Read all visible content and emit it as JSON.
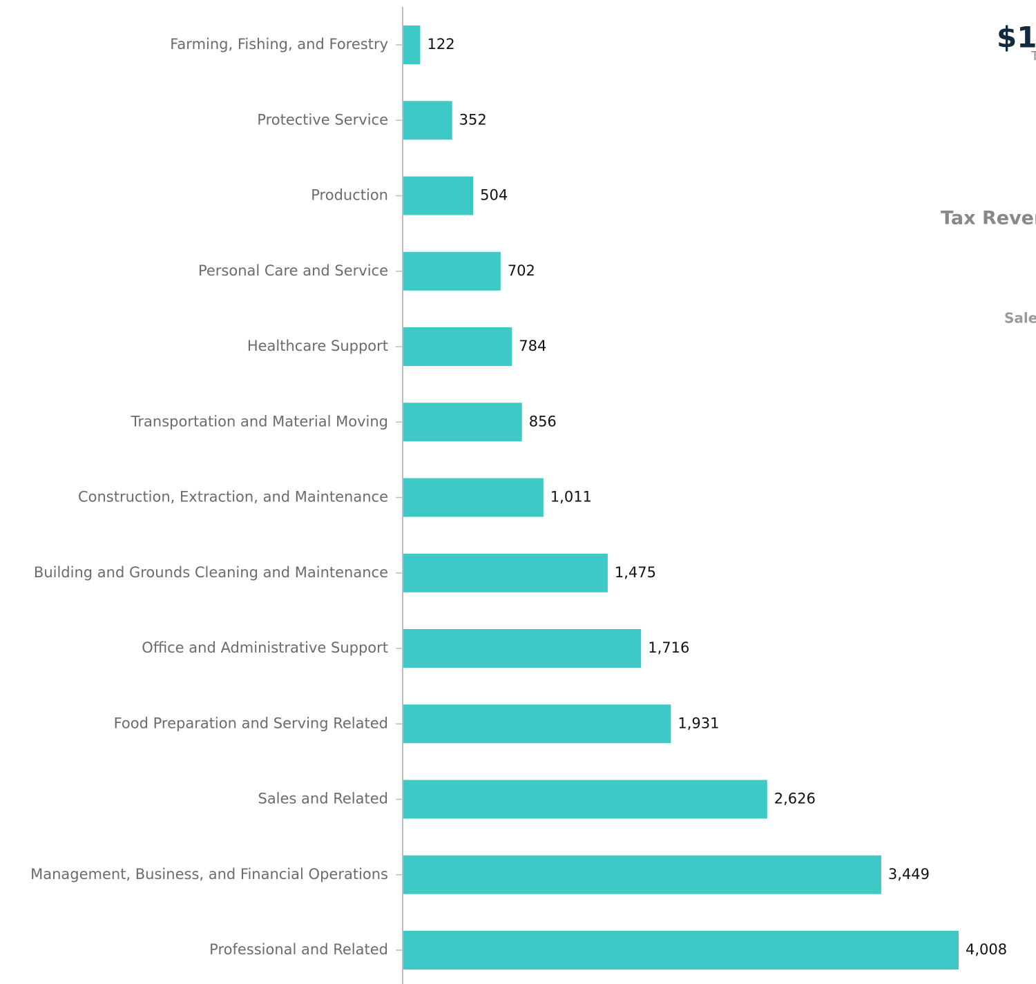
{
  "chart_data": {
    "type": "barh",
    "categories": [
      "Farming, Fishing, and Forestry",
      "Protective Service",
      "Production",
      "Personal Care and Service",
      "Healthcare Support",
      "Transportation and Material Moving",
      "Construction, Extraction, and Maintenance",
      "Building and Grounds Cleaning and Maintenance",
      "Office and Administrative Support",
      "Food Preparation and Serving Related",
      "Sales and Related",
      "Management, Business, and Financial Operations",
      "Professional and Related"
    ],
    "values": [
      122,
      352,
      504,
      702,
      784,
      856,
      1011,
      1475,
      1716,
      1931,
      2626,
      3449,
      4008
    ],
    "value_labels": [
      "122",
      "352",
      "504",
      "702",
      "784",
      "856",
      "1,011",
      "1,475",
      "1,716",
      "1,931",
      "2,626",
      "3,449",
      "4,008"
    ],
    "color": "#3ec9c6"
  },
  "side_panel": {
    "headline": "$1",
    "headline_caption": "T",
    "section_title": "Tax Rever",
    "section_caption": "Sale"
  }
}
